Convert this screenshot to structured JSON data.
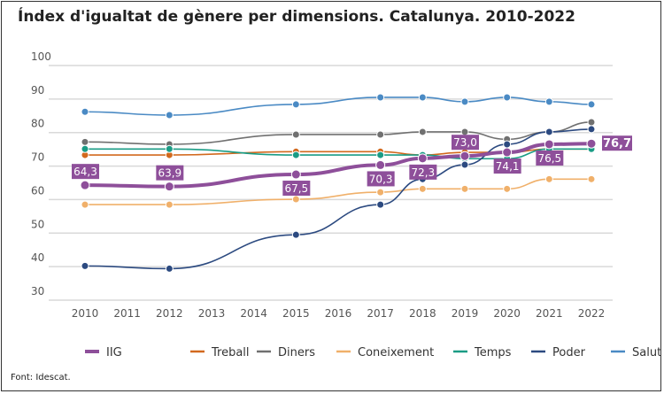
{
  "chart_data": {
    "type": "line",
    "title": "Índex d'igualtat de gènere per dimensions. Catalunya. 2010-2022",
    "source": "Font: Idescat.",
    "x_ticks": [
      "2010",
      "2011",
      "2012",
      "2013",
      "2014",
      "2015",
      "2016",
      "2017",
      "2018",
      "2019",
      "2020",
      "2021",
      "2022"
    ],
    "x": [
      2010,
      2012,
      2015,
      2017,
      2018,
      2019,
      2020,
      2021,
      2022
    ],
    "ylim": [
      30,
      100
    ],
    "y_ticks": [
      30,
      40,
      50,
      60,
      70,
      80,
      90,
      100
    ],
    "grid": true,
    "legend_placement": "bottom",
    "series": [
      {
        "name": "IIG",
        "color": "#8e4f9a",
        "values": [
          64.3,
          63.9,
          67.5,
          70.3,
          72.3,
          73.0,
          74.1,
          76.5,
          76.7
        ],
        "labels": [
          "64,3",
          "63,9",
          "67,5",
          "70,3",
          "72,3",
          "73,0",
          "74,1",
          "76,5",
          "76,7"
        ]
      },
      {
        "name": "Treball",
        "color": "#d2691e",
        "values": [
          73.3,
          73.3,
          74.3,
          74.3,
          73.3,
          74.1,
          74.1,
          75.1,
          75.1
        ]
      },
      {
        "name": "Diners",
        "color": "#707070",
        "values": [
          77.2,
          76.5,
          79.4,
          79.4,
          80.2,
          80.2,
          78.0,
          80.2,
          83.1
        ]
      },
      {
        "name": "Coneixement",
        "color": "#f0b06a",
        "values": [
          58.5,
          58.5,
          60.1,
          62.2,
          63.2,
          63.2,
          63.2,
          66.1,
          66.1
        ]
      },
      {
        "name": "Temps",
        "color": "#1a9c85",
        "values": [
          75.1,
          75.1,
          73.3,
          73.3,
          73.3,
          72.2,
          72.2,
          75.1,
          75.1
        ]
      },
      {
        "name": "Poder",
        "color": "#2c4a80",
        "values": [
          40.2,
          39.4,
          49.5,
          58.5,
          66.1,
          70.4,
          76.5,
          80.2,
          81.0
        ]
      },
      {
        "name": "Salut",
        "color": "#4a8ac4",
        "values": [
          86.2,
          85.2,
          88.4,
          90.5,
          90.5,
          89.2,
          90.5,
          89.2,
          88.4
        ]
      }
    ]
  }
}
